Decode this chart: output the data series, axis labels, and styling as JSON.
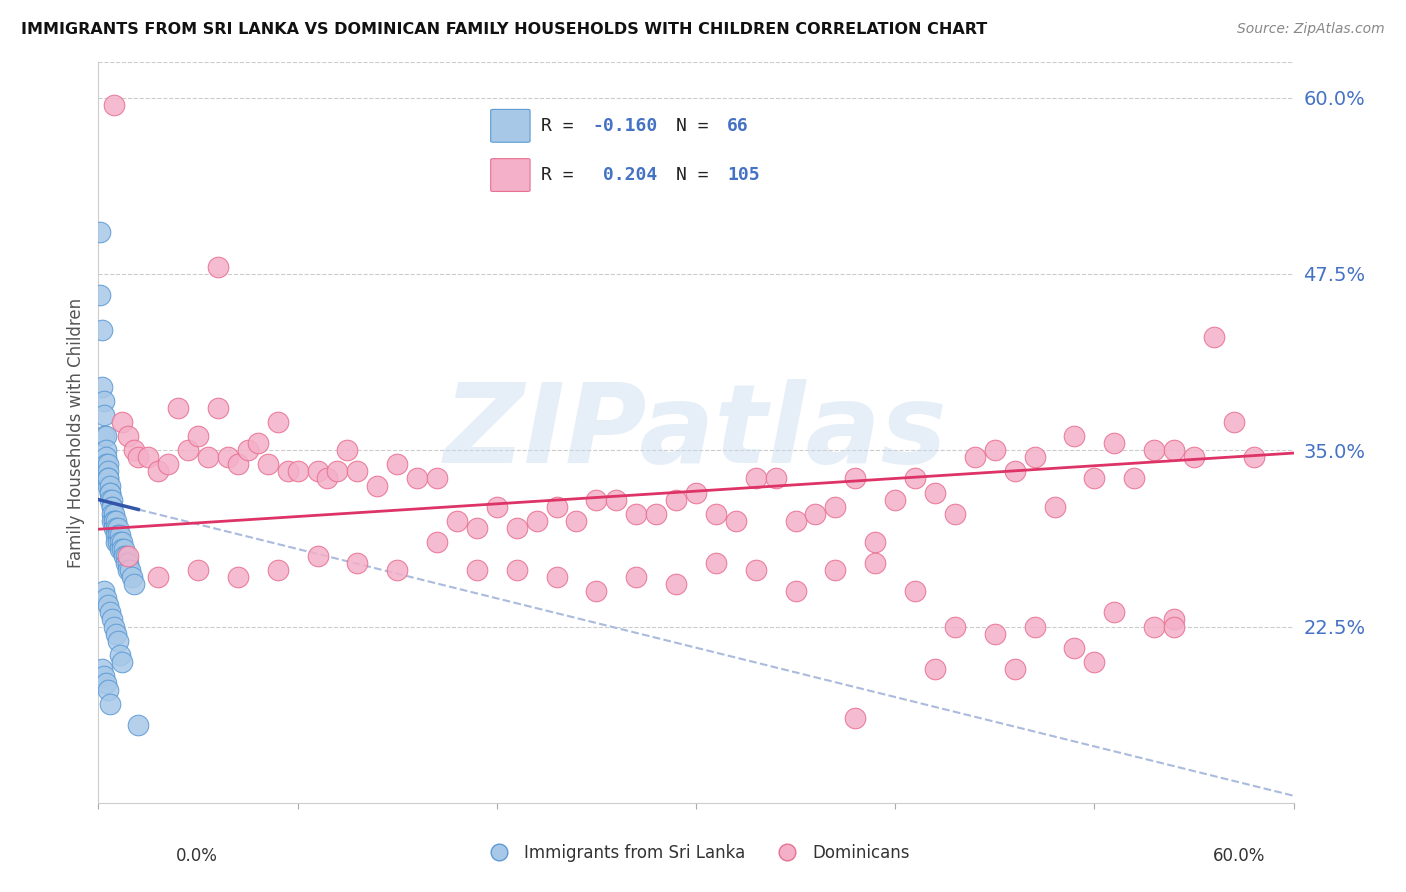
{
  "title": "IMMIGRANTS FROM SRI LANKA VS DOMINICAN FAMILY HOUSEHOLDS WITH CHILDREN CORRELATION CHART",
  "source": "Source: ZipAtlas.com",
  "legend_labels": [
    "Immigrants from Sri Lanka",
    "Dominicans"
  ],
  "legend_r": [
    -0.16,
    0.204
  ],
  "legend_n": [
    66,
    105
  ],
  "ylabel": "Family Households with Children",
  "ytick_labels": [
    "60.0%",
    "47.5%",
    "35.0%",
    "22.5%"
  ],
  "ytick_values": [
    0.6,
    0.475,
    0.35,
    0.225
  ],
  "xmin": 0.0,
  "xmax": 0.6,
  "ymin": 0.1,
  "ymax": 0.625,
  "blue_color": "#a8c8e8",
  "pink_color": "#f4b0c8",
  "blue_edge": "#5b9bd5",
  "pink_edge": "#e87090",
  "trend_blue": "#3355aa",
  "trend_pink": "#dd3366",
  "dash_color": "#aabbdd",
  "watermark": "ZIPatlas",
  "blue_scatter_x": [
    0.001,
    0.001,
    0.002,
    0.002,
    0.003,
    0.003,
    0.003,
    0.004,
    0.004,
    0.004,
    0.004,
    0.005,
    0.005,
    0.005,
    0.005,
    0.005,
    0.006,
    0.006,
    0.006,
    0.006,
    0.007,
    0.007,
    0.007,
    0.007,
    0.007,
    0.008,
    0.008,
    0.008,
    0.008,
    0.009,
    0.009,
    0.009,
    0.009,
    0.01,
    0.01,
    0.01,
    0.011,
    0.011,
    0.011,
    0.012,
    0.012,
    0.013,
    0.013,
    0.014,
    0.014,
    0.015,
    0.015,
    0.016,
    0.017,
    0.018,
    0.003,
    0.004,
    0.005,
    0.006,
    0.007,
    0.008,
    0.009,
    0.01,
    0.011,
    0.012,
    0.002,
    0.003,
    0.004,
    0.005,
    0.006,
    0.02
  ],
  "blue_scatter_y": [
    0.505,
    0.46,
    0.435,
    0.395,
    0.385,
    0.375,
    0.36,
    0.36,
    0.35,
    0.345,
    0.34,
    0.34,
    0.335,
    0.33,
    0.325,
    0.33,
    0.325,
    0.32,
    0.32,
    0.315,
    0.315,
    0.31,
    0.31,
    0.305,
    0.3,
    0.305,
    0.3,
    0.3,
    0.295,
    0.3,
    0.295,
    0.29,
    0.285,
    0.295,
    0.29,
    0.285,
    0.29,
    0.285,
    0.28,
    0.285,
    0.28,
    0.28,
    0.275,
    0.275,
    0.27,
    0.27,
    0.265,
    0.265,
    0.26,
    0.255,
    0.25,
    0.245,
    0.24,
    0.235,
    0.23,
    0.225,
    0.22,
    0.215,
    0.205,
    0.2,
    0.195,
    0.19,
    0.185,
    0.18,
    0.17,
    0.155
  ],
  "pink_scatter_x": [
    0.008,
    0.012,
    0.015,
    0.018,
    0.02,
    0.025,
    0.03,
    0.035,
    0.04,
    0.045,
    0.05,
    0.055,
    0.06,
    0.065,
    0.07,
    0.075,
    0.08,
    0.085,
    0.09,
    0.095,
    0.1,
    0.11,
    0.115,
    0.12,
    0.125,
    0.13,
    0.14,
    0.15,
    0.16,
    0.17,
    0.18,
    0.19,
    0.2,
    0.21,
    0.22,
    0.23,
    0.24,
    0.25,
    0.26,
    0.27,
    0.28,
    0.29,
    0.3,
    0.31,
    0.32,
    0.33,
    0.34,
    0.35,
    0.36,
    0.37,
    0.38,
    0.39,
    0.4,
    0.41,
    0.42,
    0.43,
    0.44,
    0.45,
    0.46,
    0.47,
    0.48,
    0.49,
    0.5,
    0.51,
    0.52,
    0.53,
    0.54,
    0.55,
    0.56,
    0.57,
    0.015,
    0.03,
    0.05,
    0.07,
    0.09,
    0.11,
    0.13,
    0.15,
    0.17,
    0.19,
    0.21,
    0.23,
    0.25,
    0.27,
    0.29,
    0.31,
    0.33,
    0.35,
    0.37,
    0.39,
    0.41,
    0.43,
    0.45,
    0.47,
    0.49,
    0.51,
    0.53,
    0.54,
    0.38,
    0.42,
    0.46,
    0.5,
    0.54,
    0.06,
    0.58
  ],
  "pink_scatter_y": [
    0.595,
    0.37,
    0.36,
    0.35,
    0.345,
    0.345,
    0.335,
    0.34,
    0.38,
    0.35,
    0.36,
    0.345,
    0.38,
    0.345,
    0.34,
    0.35,
    0.355,
    0.34,
    0.37,
    0.335,
    0.335,
    0.335,
    0.33,
    0.335,
    0.35,
    0.335,
    0.325,
    0.34,
    0.33,
    0.33,
    0.3,
    0.295,
    0.31,
    0.295,
    0.3,
    0.31,
    0.3,
    0.315,
    0.315,
    0.305,
    0.305,
    0.315,
    0.32,
    0.305,
    0.3,
    0.33,
    0.33,
    0.3,
    0.305,
    0.31,
    0.33,
    0.285,
    0.315,
    0.33,
    0.32,
    0.305,
    0.345,
    0.35,
    0.335,
    0.345,
    0.31,
    0.36,
    0.33,
    0.355,
    0.33,
    0.35,
    0.35,
    0.345,
    0.43,
    0.37,
    0.275,
    0.26,
    0.265,
    0.26,
    0.265,
    0.275,
    0.27,
    0.265,
    0.285,
    0.265,
    0.265,
    0.26,
    0.25,
    0.26,
    0.255,
    0.27,
    0.265,
    0.25,
    0.265,
    0.27,
    0.25,
    0.225,
    0.22,
    0.225,
    0.21,
    0.235,
    0.225,
    0.23,
    0.16,
    0.195,
    0.195,
    0.2,
    0.225,
    0.48,
    0.345
  ]
}
